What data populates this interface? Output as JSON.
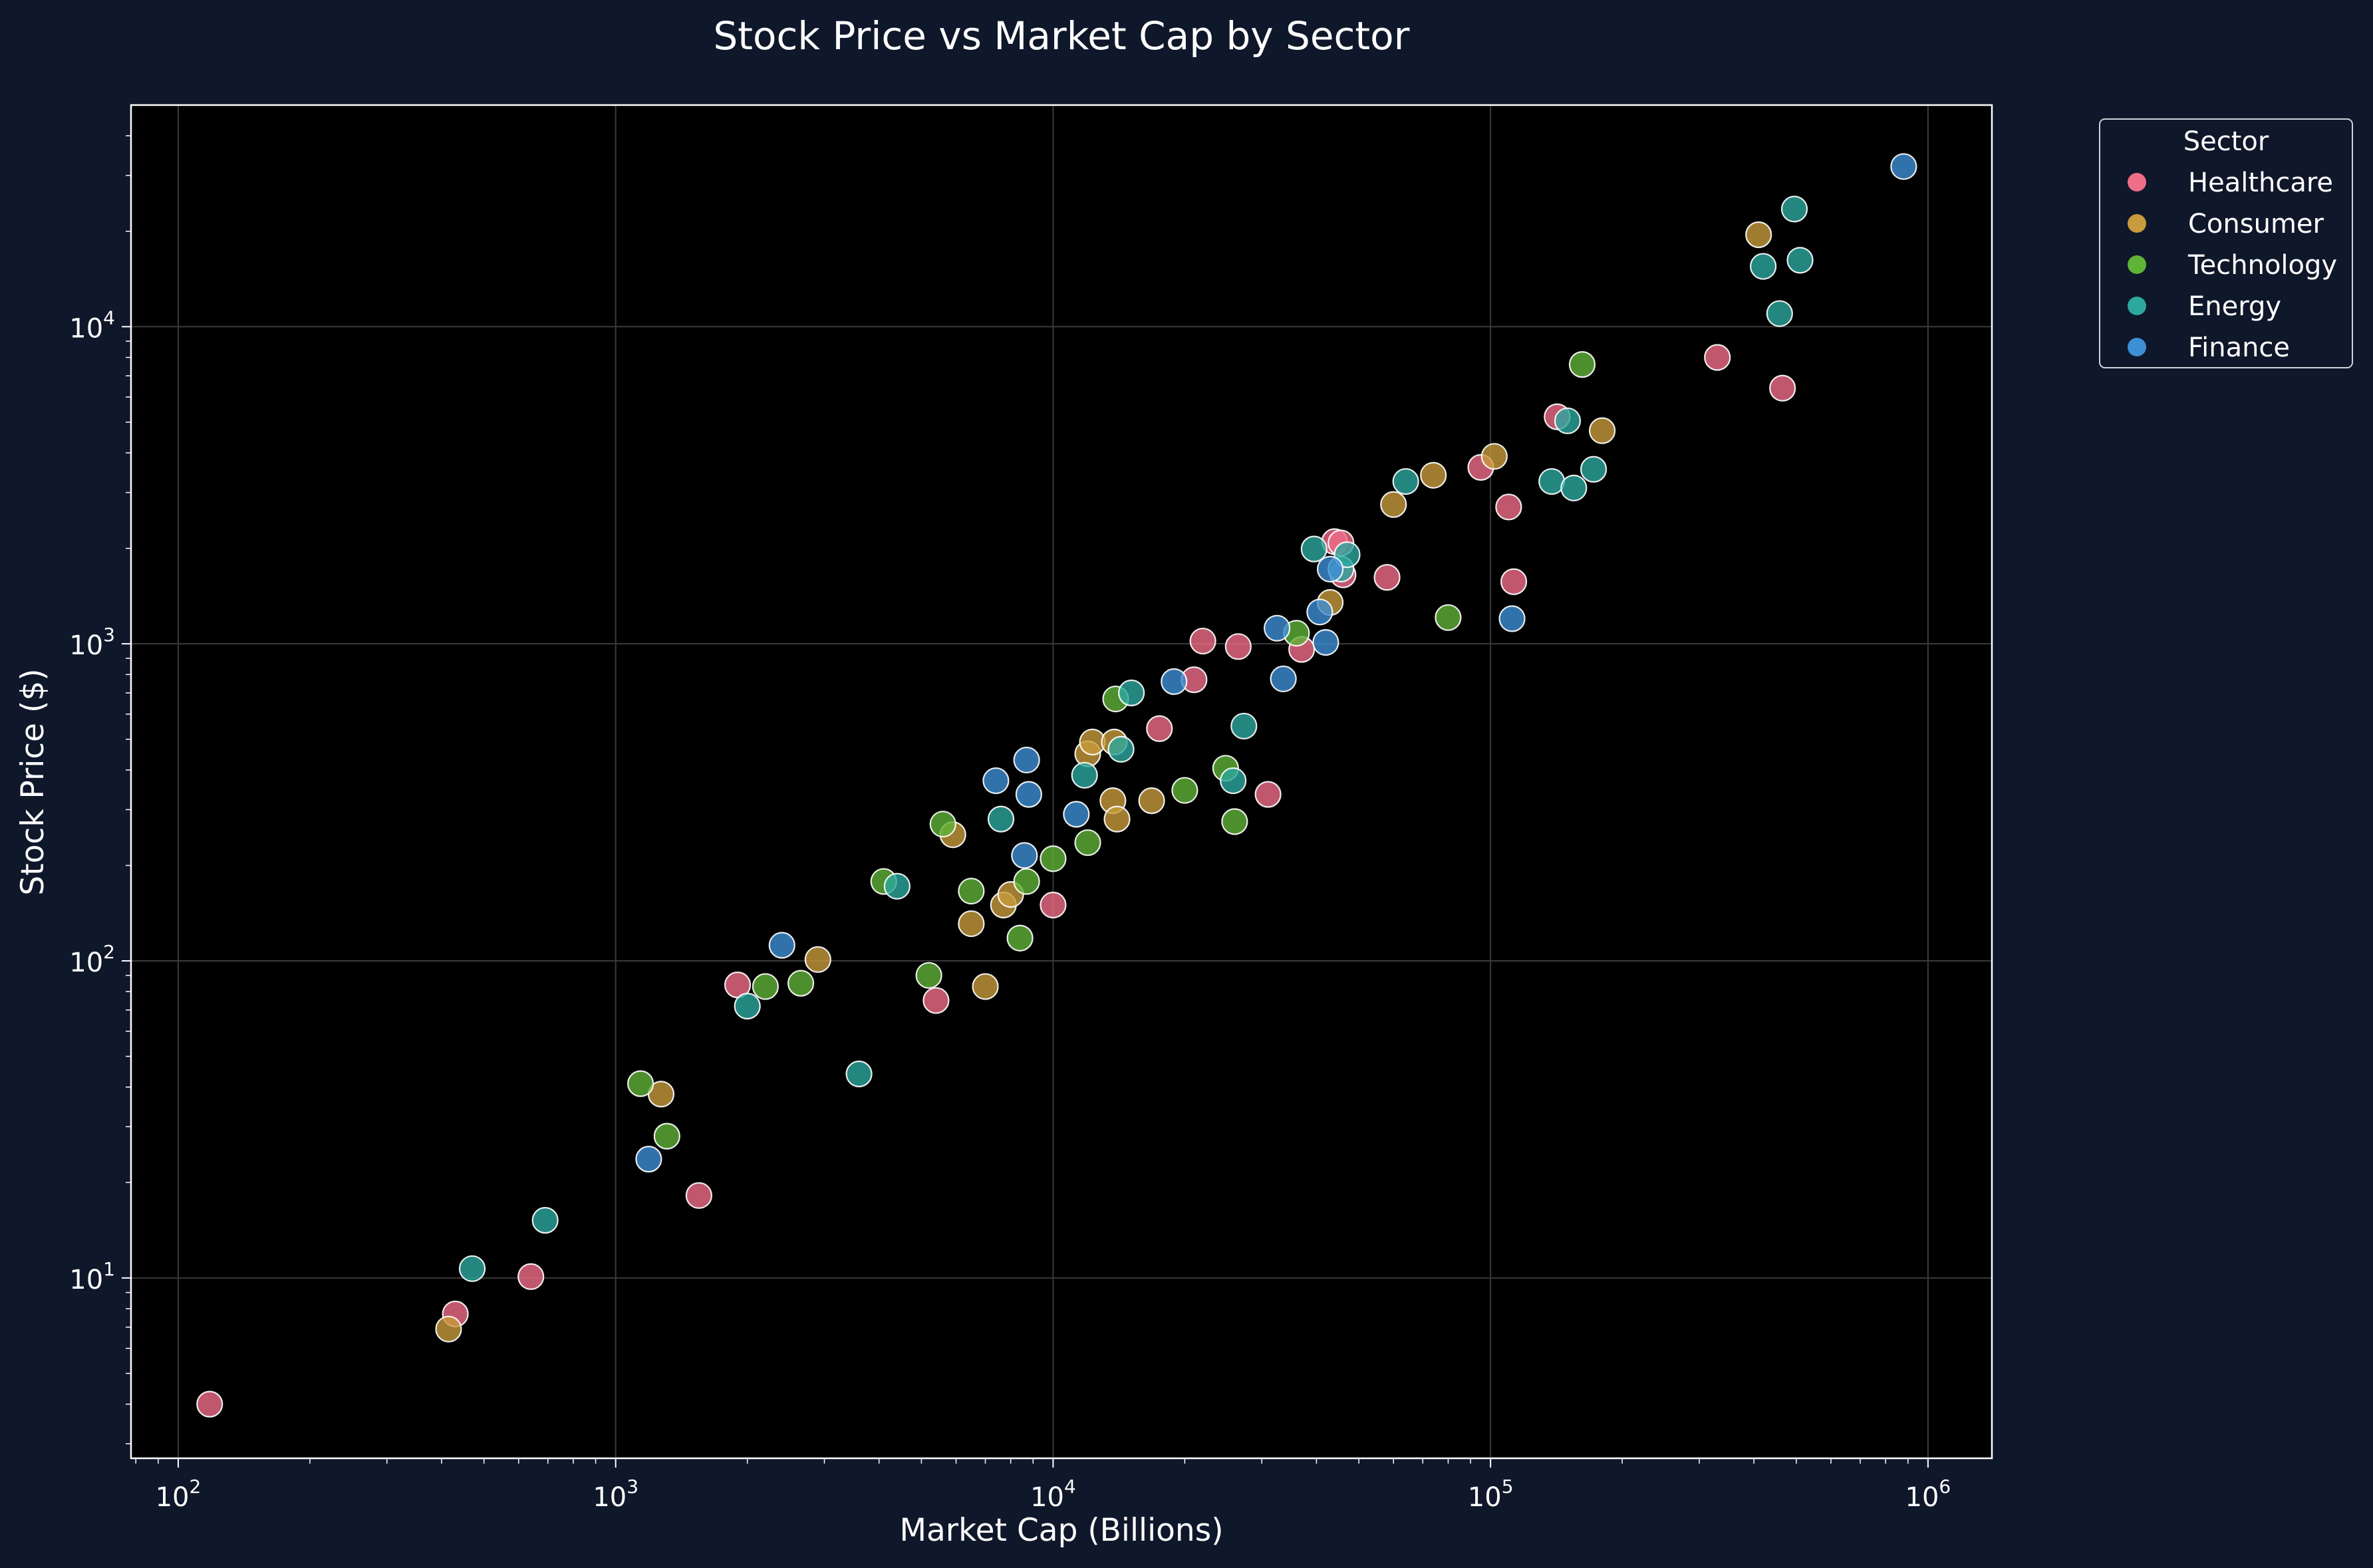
{
  "chart_data": {
    "type": "scatter",
    "title": "Stock Price vs Market Cap by Sector",
    "xlabel": "Market Cap (Billions)",
    "ylabel": "Stock Price ($)",
    "xscale": "log",
    "yscale": "log",
    "xlim": [
      78,
      1400000
    ],
    "ylim": [
      2.7,
      50000
    ],
    "xticks": [
      {
        "base": "10",
        "exp": "2",
        "value": 100
      },
      {
        "base": "10",
        "exp": "3",
        "value": 1000
      },
      {
        "base": "10",
        "exp": "4",
        "value": 10000
      },
      {
        "base": "10",
        "exp": "5",
        "value": 100000
      },
      {
        "base": "10",
        "exp": "6",
        "value": 1000000
      }
    ],
    "yticks": [
      {
        "base": "10",
        "exp": "1",
        "value": 10
      },
      {
        "base": "10",
        "exp": "2",
        "value": 100
      },
      {
        "base": "10",
        "exp": "3",
        "value": 1000
      },
      {
        "base": "10",
        "exp": "4",
        "value": 10000
      }
    ],
    "grid": true,
    "legend": {
      "title": "Sector",
      "position": "outside-top-right"
    },
    "colors": {
      "figure_background": "#0f172a",
      "plot_background": "#000000",
      "grid": "#3a3a3a",
      "text": "#ffffff"
    },
    "series": [
      {
        "name": "Healthcare",
        "color": "#f06d88",
        "points": [
          [
            118,
            4.0
          ],
          [
            430,
            7.7
          ],
          [
            640,
            10.1
          ],
          [
            1550,
            18.2
          ],
          [
            1900,
            84
          ],
          [
            5400,
            75
          ],
          [
            10000,
            150
          ],
          [
            17500,
            540
          ],
          [
            21000,
            770
          ],
          [
            22000,
            1020
          ],
          [
            26500,
            980
          ],
          [
            31000,
            335
          ],
          [
            37000,
            960
          ],
          [
            44000,
            2100
          ],
          [
            46000,
            1650
          ],
          [
            45500,
            2080
          ],
          [
            58000,
            1620
          ],
          [
            95000,
            3600
          ],
          [
            110000,
            2700
          ],
          [
            113000,
            1570
          ],
          [
            142000,
            5200
          ],
          [
            330000,
            8000
          ],
          [
            465000,
            6400
          ]
        ]
      },
      {
        "name": "Consumer",
        "color": "#c89b3c",
        "points": [
          [
            415,
            6.9
          ],
          [
            1270,
            38
          ],
          [
            2900,
            101
          ],
          [
            5900,
            250
          ],
          [
            6500,
            131
          ],
          [
            7000,
            83
          ],
          [
            7700,
            150
          ],
          [
            8000,
            162
          ],
          [
            12000,
            450
          ],
          [
            12300,
            490
          ],
          [
            13700,
            320
          ],
          [
            13800,
            490
          ],
          [
            14000,
            280
          ],
          [
            16800,
            320
          ],
          [
            43000,
            1350
          ],
          [
            60000,
            2750
          ],
          [
            74000,
            3400
          ],
          [
            102000,
            3900
          ],
          [
            180000,
            4700
          ],
          [
            410000,
            19500
          ]
        ]
      },
      {
        "name": "Technology",
        "color": "#5fb337",
        "points": [
          [
            1140,
            41
          ],
          [
            1310,
            28
          ],
          [
            2200,
            83
          ],
          [
            2650,
            85
          ],
          [
            4100,
            178
          ],
          [
            5200,
            90
          ],
          [
            5600,
            270
          ],
          [
            6500,
            166
          ],
          [
            8400,
            118
          ],
          [
            8700,
            178
          ],
          [
            10000,
            210
          ],
          [
            12000,
            236
          ],
          [
            13900,
            670
          ],
          [
            20000,
            345
          ],
          [
            24800,
            405
          ],
          [
            26000,
            275
          ],
          [
            36000,
            1080
          ],
          [
            80000,
            1210
          ],
          [
            162000,
            7600
          ]
        ]
      },
      {
        "name": "Energy",
        "color": "#2ca89f",
        "points": [
          [
            470,
            10.7
          ],
          [
            690,
            15.2
          ],
          [
            2000,
            72
          ],
          [
            3600,
            44
          ],
          [
            4400,
            172
          ],
          [
            7600,
            280
          ],
          [
            11800,
            385
          ],
          [
            14300,
            465
          ],
          [
            15100,
            700
          ],
          [
            25800,
            370
          ],
          [
            27300,
            550
          ],
          [
            39500,
            1990
          ],
          [
            45500,
            1720
          ],
          [
            47000,
            1910
          ],
          [
            64000,
            3250
          ],
          [
            138000,
            3250
          ],
          [
            150000,
            5050
          ],
          [
            155000,
            3100
          ],
          [
            172000,
            3550
          ],
          [
            420000,
            15500
          ],
          [
            458000,
            11000
          ],
          [
            495000,
            23500
          ],
          [
            510000,
            16200
          ]
        ]
      },
      {
        "name": "Finance",
        "color": "#3d8fd6",
        "points": [
          [
            1190,
            23.7
          ],
          [
            2400,
            112
          ],
          [
            7400,
            370
          ],
          [
            8600,
            215
          ],
          [
            8700,
            430
          ],
          [
            8800,
            335
          ],
          [
            11300,
            290
          ],
          [
            18900,
            760
          ],
          [
            32500,
            1120
          ],
          [
            33600,
            775
          ],
          [
            40700,
            1260
          ],
          [
            42000,
            1010
          ],
          [
            43000,
            1720
          ],
          [
            112000,
            1200
          ],
          [
            880000,
            32000
          ]
        ]
      }
    ]
  }
}
